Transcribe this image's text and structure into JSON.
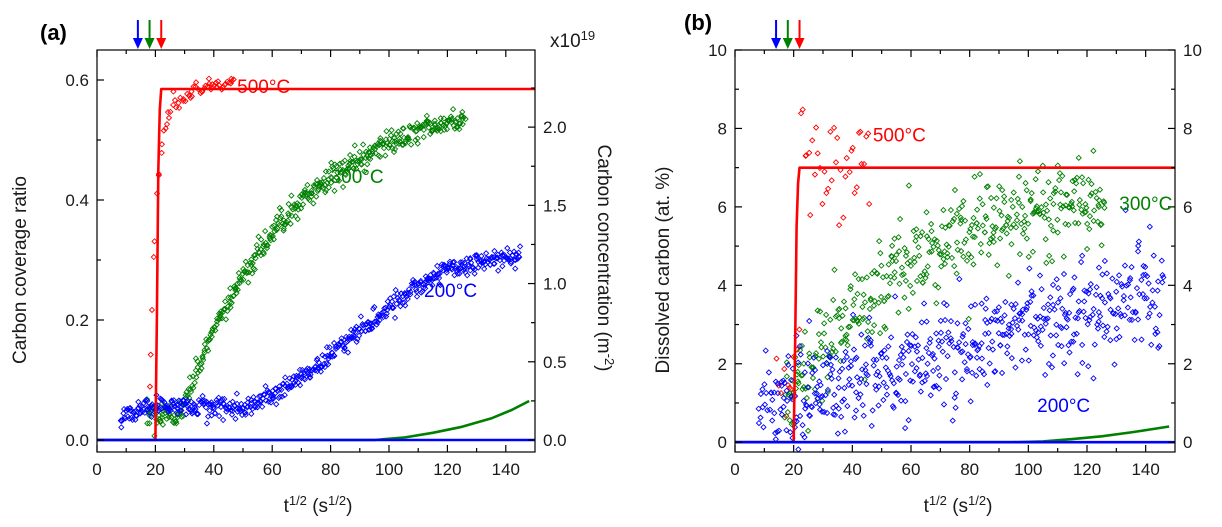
{
  "chart_data": [
    {
      "panel": "(a)",
      "type": "scatter",
      "xlabel": "t",
      "xlabel_sup": "1/2",
      "xlabel_unit": " (s",
      "xlabel_unit_sup": "1/2",
      "xlabel_close": ")",
      "ylabel": "Carbon coverage ratio",
      "y2label": "Carbon concentration (m",
      "y2label_sup": "-2",
      "y2label_close": ")",
      "y2_multiplier": "x10",
      "y2_multiplier_sup": "19",
      "xlim": [
        0,
        150
      ],
      "ylim": [
        -0.02,
        0.65
      ],
      "y2lim": [
        -0.0767,
        2.493
      ],
      "xticks": [
        "0",
        "20",
        "40",
        "60",
        "80",
        "100",
        "120",
        "140"
      ],
      "yticks": [
        "0.0",
        "0.2",
        "0.4",
        "0.6"
      ],
      "y2ticks": [
        "0.0",
        "0.5",
        "1.0",
        "1.5",
        "2.0"
      ],
      "arrows": [
        {
          "x": 14,
          "color": "#0000ff"
        },
        {
          "x": 18,
          "color": "#008000"
        },
        {
          "x": 22,
          "color": "#ff0000"
        }
      ],
      "lines": [
        {
          "name": "500°C",
          "color": "#ff0000",
          "x": [
            0,
            20,
            20.5,
            21,
            21.5,
            22,
            150
          ],
          "y": [
            0,
            0,
            0.2,
            0.45,
            0.55,
            0.585,
            0.585
          ]
        },
        {
          "name": "300°C",
          "color": "#008000",
          "x": [
            0,
            95,
            105,
            115,
            125,
            135,
            142,
            148
          ],
          "y": [
            0,
            0,
            0.004,
            0.012,
            0.022,
            0.036,
            0.05,
            0.065
          ]
        },
        {
          "name": "200°C",
          "color": "#0000ff",
          "x": [
            0,
            150
          ],
          "y": [
            0,
            0
          ]
        }
      ],
      "scatter": [
        {
          "name": "500°C",
          "color": "#ff0000",
          "model": "red_a",
          "x_range": [
            18,
            47
          ],
          "count": 60,
          "noise": 0.007
        },
        {
          "name": "300°C",
          "color": "#008000",
          "model": "green_a",
          "x_range": [
            17,
            126
          ],
          "count": 460,
          "noise": 0.01
        },
        {
          "name": "200°C",
          "color": "#0000ff",
          "model": "blue_a",
          "x_range": [
            8,
            145
          ],
          "count": 560,
          "noise": 0.009
        }
      ],
      "annotations": [
        {
          "text": "500°C",
          "color": "#ff0000",
          "x": 48,
          "y": 0.59
        },
        {
          "text": "300°C",
          "color": "#008000",
          "x": 80,
          "y": 0.44
        },
        {
          "text": "200°C",
          "color": "#0000ff",
          "x": 112,
          "y": 0.25
        }
      ]
    },
    {
      "panel": "(b)",
      "type": "scatter",
      "xlabel": "t",
      "xlabel_sup": "1/2",
      "xlabel_unit": " (s",
      "xlabel_unit_sup": "1/2",
      "xlabel_close": ")",
      "ylabel": "Dissolved carbon (at. %)",
      "xlim": [
        0,
        150
      ],
      "ylim": [
        -0.25,
        10
      ],
      "y2lim": [
        -0.25,
        10
      ],
      "xticks": [
        "0",
        "20",
        "40",
        "60",
        "80",
        "100",
        "120",
        "140"
      ],
      "yticks": [
        "0",
        "2",
        "4",
        "6",
        "8",
        "10"
      ],
      "y2ticks": [
        "0",
        "2",
        "4",
        "6",
        "8",
        "10"
      ],
      "arrows": [
        {
          "x": 14,
          "color": "#0000ff"
        },
        {
          "x": 18,
          "color": "#008000"
        },
        {
          "x": 22,
          "color": "#ff0000"
        }
      ],
      "lines": [
        {
          "name": "500°C",
          "color": "#ff0000",
          "x": [
            0,
            20,
            20.5,
            21,
            21.5,
            22,
            150
          ],
          "y": [
            0,
            0,
            2.5,
            5.5,
            6.6,
            7.0,
            7.0
          ]
        },
        {
          "name": "300°C",
          "color": "#008000",
          "x": [
            0,
            95,
            105,
            115,
            125,
            135,
            142,
            148
          ],
          "y": [
            0,
            0,
            0.02,
            0.08,
            0.15,
            0.25,
            0.33,
            0.4
          ]
        },
        {
          "name": "200°C",
          "color": "#0000ff",
          "x": [
            0,
            150
          ],
          "y": [
            0,
            0
          ]
        }
      ],
      "scatter": [
        {
          "name": "500°C",
          "color": "#ff0000",
          "model": "red_b",
          "x_range": [
            14,
            46
          ],
          "count": 50,
          "noise": 0.8
        },
        {
          "name": "300°C",
          "color": "#008000",
          "model": "green_b",
          "x_range": [
            17,
            126
          ],
          "count": 420,
          "noise": 0.55
        },
        {
          "name": "200°C",
          "color": "#0000ff",
          "model": "blue_b",
          "x_range": [
            8,
            146
          ],
          "count": 560,
          "noise": 0.65
        }
      ],
      "annotations": [
        {
          "text": "500°C",
          "color": "#ff0000",
          "x": 47,
          "y": 7.85
        },
        {
          "text": "300°C",
          "color": "#008000",
          "x": 131,
          "y": 6.1
        },
        {
          "text": "200°C",
          "color": "#0000ff",
          "x": 103,
          "y": 0.95
        }
      ]
    }
  ]
}
